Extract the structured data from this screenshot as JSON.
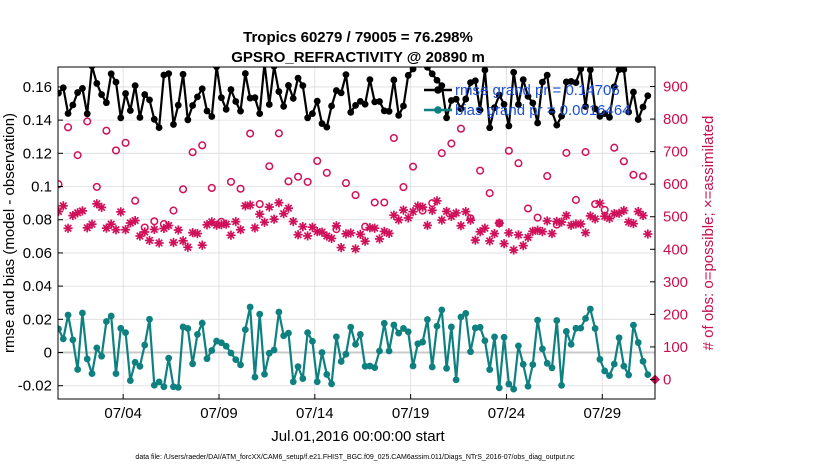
{
  "chart_data": {
    "type": "line",
    "title": "Tropics 60279 / 79005 = 76.298%",
    "subtitle": "GPSRO_REFRACTIVITY @ 20890 m",
    "xlabel": "Jul.01,2016 00:00:00 start",
    "ylabel": "rmse and bias (model - observation)",
    "ylabel_right": "# of obs: o=possible; ×=assimilated",
    "x_range": [
      0.6,
      31.75
    ],
    "ylim": [
      -0.028,
      0.172
    ],
    "ylim_right": [
      -60,
      960
    ],
    "x_ticks": [
      {
        "v": 4,
        "label": "07/04"
      },
      {
        "v": 9,
        "label": "07/09"
      },
      {
        "v": 14,
        "label": "07/14"
      },
      {
        "v": 19,
        "label": "07/19"
      },
      {
        "v": 24,
        "label": "07/24"
      },
      {
        "v": 29,
        "label": "07/29"
      }
    ],
    "y_ticks": [
      {
        "v": -0.02,
        "label": "-0.02"
      },
      {
        "v": 0,
        "label": "0"
      },
      {
        "v": 0.02,
        "label": "0.02"
      },
      {
        "v": 0.04,
        "label": "0.04"
      },
      {
        "v": 0.06,
        "label": "0.06"
      },
      {
        "v": 0.08,
        "label": "0.08"
      },
      {
        "v": 0.1,
        "label": "0.1"
      },
      {
        "v": 0.12,
        "label": "0.12"
      },
      {
        "v": 0.14,
        "label": "0.14"
      },
      {
        "v": 0.16,
        "label": "0.16"
      }
    ],
    "y_ticks_right": [
      {
        "v": 0,
        "label": "0"
      },
      {
        "v": 100,
        "label": "100"
      },
      {
        "v": 200,
        "label": "200"
      },
      {
        "v": 300,
        "label": "300"
      },
      {
        "v": 400,
        "label": "400"
      },
      {
        "v": 500,
        "label": "500"
      },
      {
        "v": 600,
        "label": "600"
      },
      {
        "v": 700,
        "label": "700"
      },
      {
        "v": 800,
        "label": "800"
      },
      {
        "v": 900,
        "label": "900"
      }
    ],
    "grid": true,
    "legend_position": "top-right",
    "series": [
      {
        "name": "rmse",
        "legend": "rmse grand pr = 0.14706",
        "color": "#000000",
        "marker": "dot",
        "axis": "left",
        "x0": 0.625,
        "dx": 0.25,
        "seed": 7,
        "base": 0.155,
        "noise": 0.018,
        "low_freq": 0.004,
        "points": []
      },
      {
        "name": "bias",
        "legend": "bias grand pr = 0.0016464",
        "color": "#0f8080",
        "marker": "dot",
        "axis": "left",
        "x0": 0.625,
        "dx": 0.25,
        "seed": 13,
        "base": 0.002,
        "noise": 0.022,
        "low_freq": 0.005,
        "points": []
      },
      {
        "name": "possible",
        "color": "#d0105a",
        "marker": "o",
        "axis": "right",
        "x0": 0.625,
        "dx": 0.5,
        "seed": 29,
        "base": 620,
        "noise": 140,
        "low_freq": 40,
        "points": []
      },
      {
        "name": "assimilated",
        "color": "#d0105a",
        "marker": "*",
        "axis": "right",
        "x0": 0.625,
        "dx": 0.25,
        "seed": 41,
        "base": 470,
        "noise": 45,
        "low_freq": 35,
        "points": []
      }
    ],
    "zero_line": 0,
    "right_axis_marker": {
      "v": 0,
      "color": "#d0105a"
    }
  },
  "footer": "data file: /Users/raeder/DAI/ATM_forcXX/CAM6_setup/f.e21.FHIST_BGC.f09_025.CAM6assim.011/Diags_NTrS_2016-07/obs_diag_output.nc"
}
